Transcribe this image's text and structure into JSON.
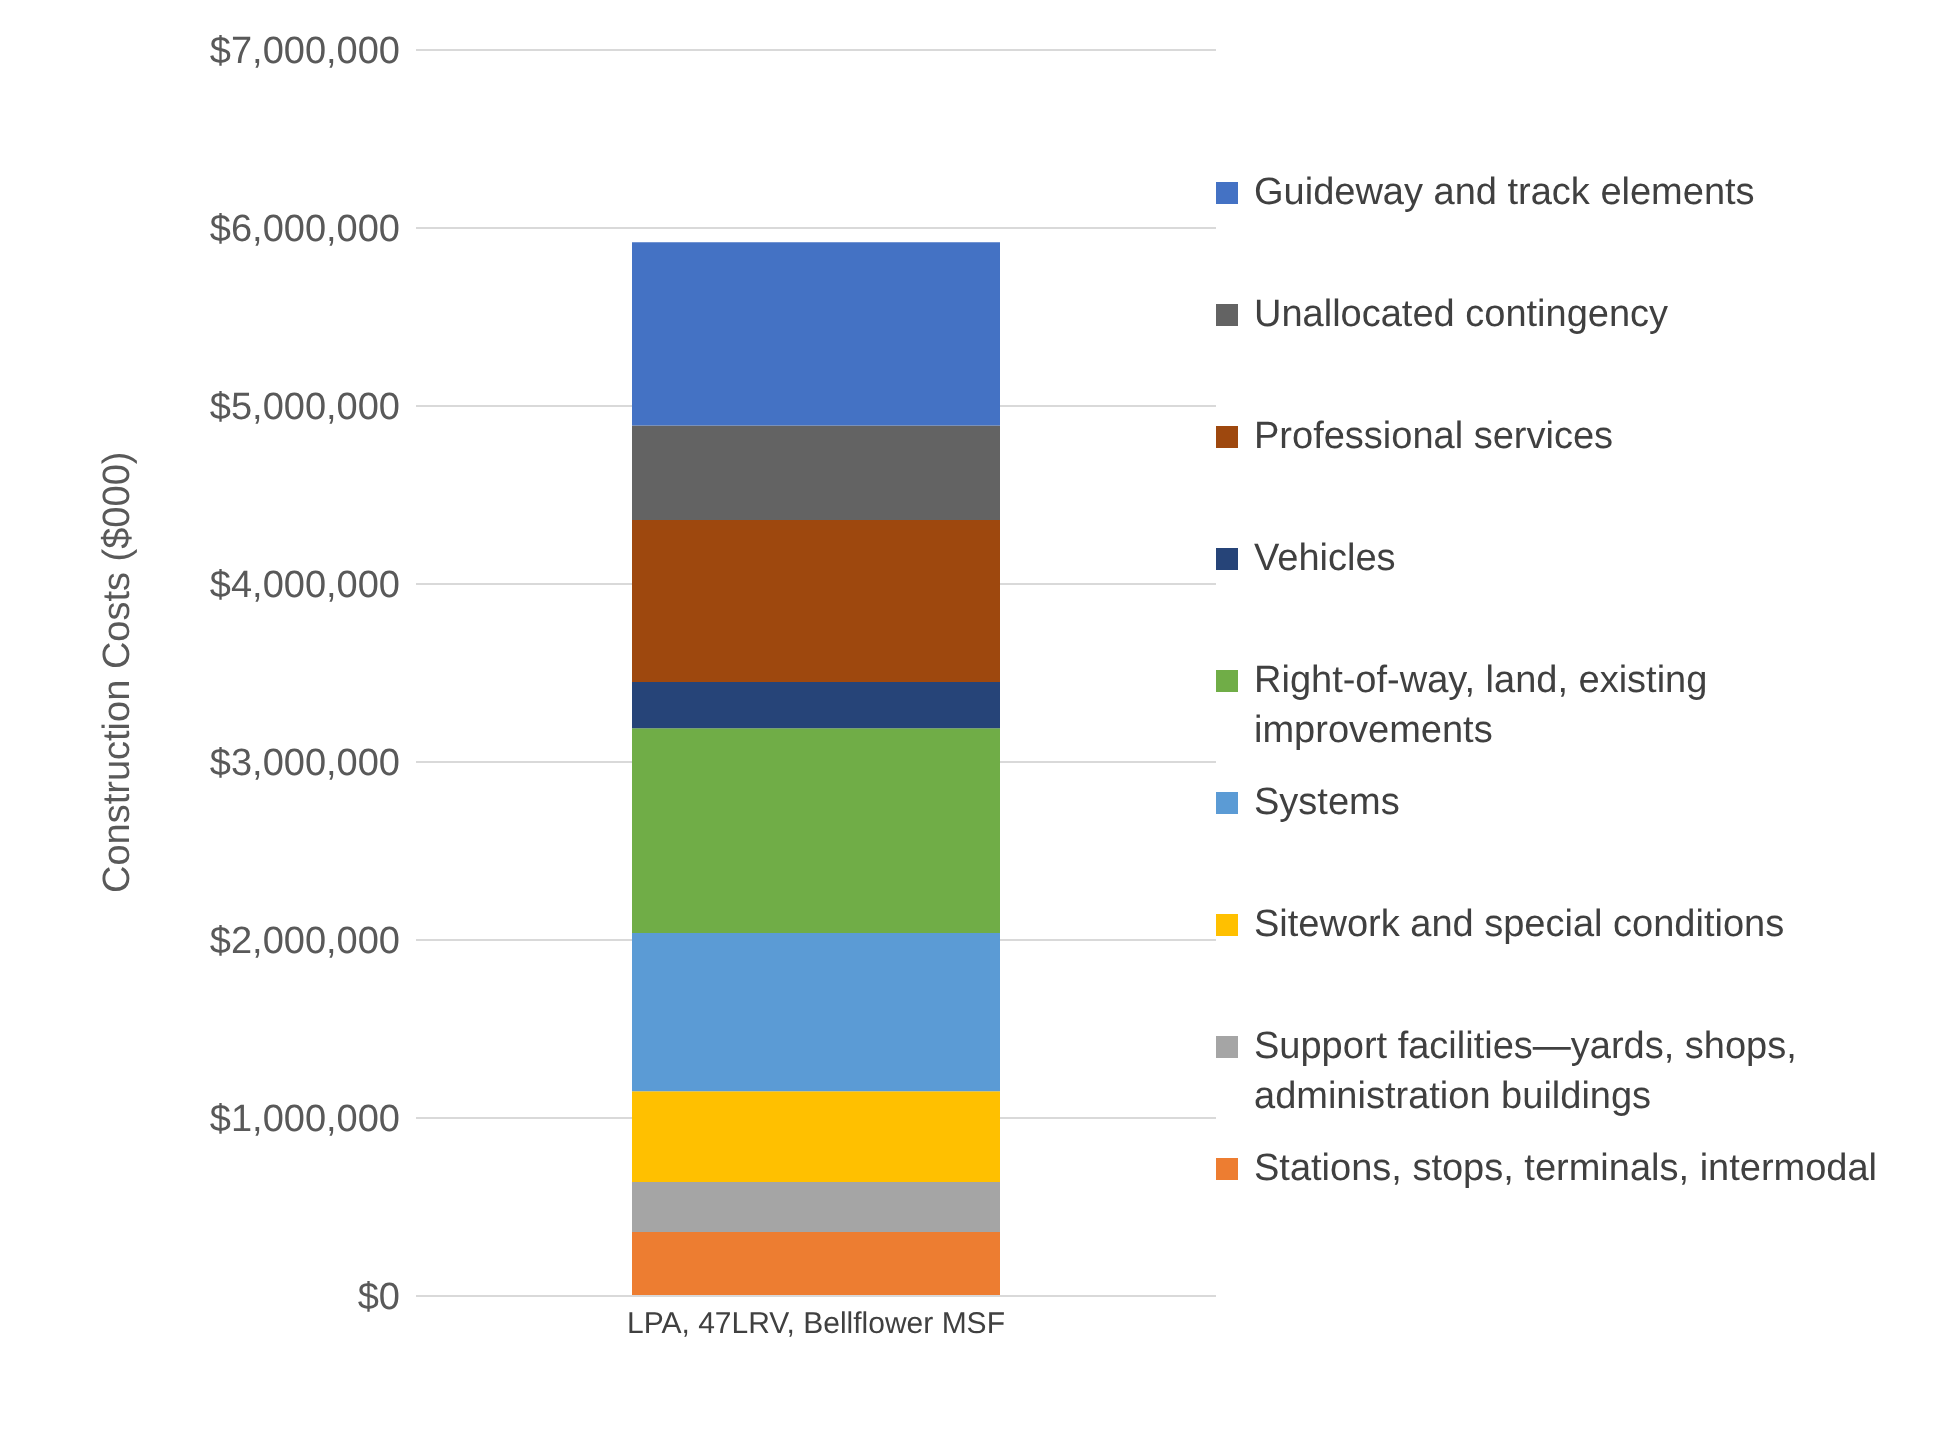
{
  "chart_data": {
    "type": "bar",
    "stacked": true,
    "categories": [
      "LPA, 47LRV, Bellflower MSF"
    ],
    "ylabel": "Construction Costs ($000)",
    "series": [
      {
        "name": "Stations, stops, terminals, intermodal",
        "color": "#ed7d31",
        "values": [
          360000
        ]
      },
      {
        "name": "Support facilities—yards, shops, administration buildings",
        "color": "#a5a5a5",
        "values": [
          280000
        ]
      },
      {
        "name": "Sitework and special conditions",
        "color": "#ffc000",
        "values": [
          510000
        ]
      },
      {
        "name": "Systems",
        "color": "#5b9bd5",
        "values": [
          890000
        ]
      },
      {
        "name": "Right-of-way, land, existing improvements",
        "color": "#70ad47",
        "values": [
          1150000
        ]
      },
      {
        "name": "Vehicles",
        "color": "#264478",
        "values": [
          260000
        ]
      },
      {
        "name": "Professional services",
        "color": "#9e480e",
        "values": [
          910000
        ]
      },
      {
        "name": "Unallocated contingency",
        "color": "#636363",
        "values": [
          530000
        ]
      },
      {
        "name": "Guideway and track elements",
        "color": "#4472c4",
        "values": [
          1030000
        ]
      }
    ],
    "ylim": [
      0,
      7000000
    ],
    "yticks": [
      {
        "value": 0,
        "label": "$0"
      },
      {
        "value": 1000000,
        "label": "$1,000,000"
      },
      {
        "value": 2000000,
        "label": "$2,000,000"
      },
      {
        "value": 3000000,
        "label": "$3,000,000"
      },
      {
        "value": 4000000,
        "label": "$4,000,000"
      },
      {
        "value": 5000000,
        "label": "$5,000,000"
      },
      {
        "value": 6000000,
        "label": "$6,000,000"
      },
      {
        "value": 7000000,
        "label": "$7,000,000"
      }
    ],
    "grid": "y",
    "legend": "right"
  }
}
